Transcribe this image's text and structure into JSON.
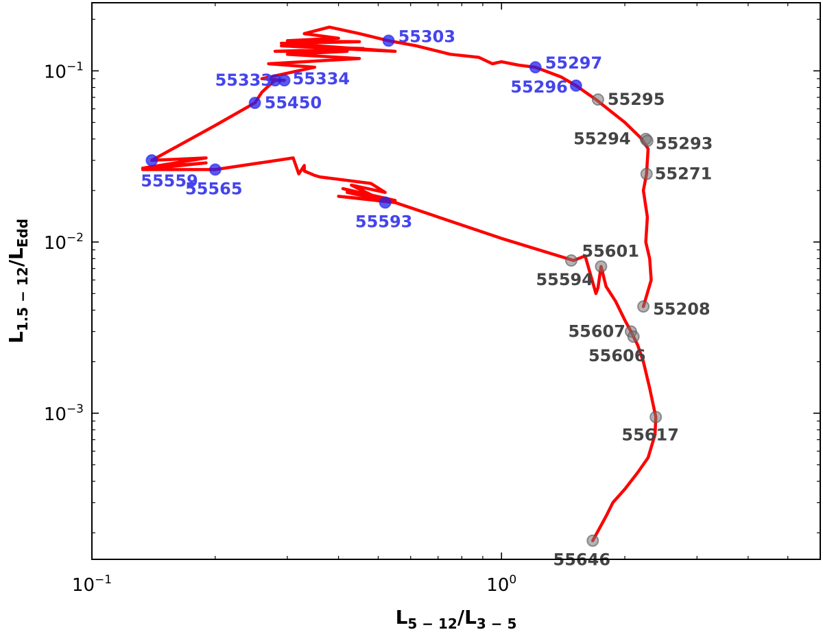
{
  "chart_data": {
    "type": "line",
    "title": "",
    "xlabel": {
      "main": "L",
      "sub1": "5 − 12",
      "slash": "/",
      "main2": "L",
      "sub2": "3 − 5"
    },
    "ylabel": {
      "main": "L",
      "sub1": "1.5 − 12",
      "slash": "/",
      "main2": "L",
      "sub2": "Edd"
    },
    "xscale": "log",
    "yscale": "log",
    "xlim": [
      0.1,
      6.0
    ],
    "ylim": [
      0.00014,
      0.25
    ],
    "grid": false,
    "x_ticks": [
      {
        "value": 0.1,
        "base": "10",
        "exp": "−1"
      },
      {
        "value": 1.0,
        "base": "10",
        "exp": "0"
      }
    ],
    "y_ticks": [
      {
        "value": 0.001,
        "base": "10",
        "exp": "−3"
      },
      {
        "value": 0.01,
        "base": "10",
        "exp": "−2"
      },
      {
        "value": 0.1,
        "base": "10",
        "exp": "−1"
      }
    ],
    "line_color": "#ff0000",
    "track": [
      [
        1.67,
        0.00018
      ],
      [
        1.8,
        0.00025
      ],
      [
        1.87,
        0.0003
      ],
      [
        2.0,
        0.00036
      ],
      [
        2.15,
        0.00045
      ],
      [
        2.28,
        0.00055
      ],
      [
        2.37,
        0.00075
      ],
      [
        2.38,
        0.00095
      ],
      [
        2.3,
        0.0014
      ],
      [
        2.22,
        0.002
      ],
      [
        2.15,
        0.0025
      ],
      [
        2.1,
        0.0028
      ],
      [
        2.07,
        0.003
      ],
      [
        2.0,
        0.0035
      ],
      [
        1.9,
        0.0045
      ],
      [
        1.8,
        0.0055
      ],
      [
        1.75,
        0.0072
      ],
      [
        1.72,
        0.0054
      ],
      [
        1.7,
        0.005
      ],
      [
        1.6,
        0.0083
      ],
      [
        1.5,
        0.0078
      ],
      [
        1.0,
        0.0105
      ],
      [
        0.55,
        0.017
      ],
      [
        0.45,
        0.018
      ],
      [
        0.4,
        0.0185
      ],
      [
        0.55,
        0.017
      ],
      [
        0.42,
        0.0195
      ],
      [
        0.55,
        0.0175
      ],
      [
        0.41,
        0.0205
      ],
      [
        0.5,
        0.018
      ],
      [
        0.43,
        0.0215
      ],
      [
        0.52,
        0.0195
      ],
      [
        0.48,
        0.022
      ],
      [
        0.36,
        0.024
      ],
      [
        0.35,
        0.0245
      ],
      [
        0.33,
        0.026
      ],
      [
        0.33,
        0.028
      ],
      [
        0.32,
        0.025
      ],
      [
        0.31,
        0.031
      ],
      [
        0.2,
        0.0265
      ],
      [
        0.133,
        0.0265
      ],
      [
        0.19,
        0.029
      ],
      [
        0.133,
        0.027
      ],
      [
        0.19,
        0.031
      ],
      [
        0.14,
        0.03
      ],
      [
        0.2,
        0.048
      ],
      [
        0.25,
        0.065
      ],
      [
        0.26,
        0.075
      ],
      [
        0.275,
        0.085
      ],
      [
        0.28,
        0.088
      ],
      [
        0.295,
        0.088
      ],
      [
        0.26,
        0.09
      ],
      [
        0.35,
        0.105
      ],
      [
        0.27,
        0.11
      ],
      [
        0.45,
        0.118
      ],
      [
        0.3,
        0.125
      ],
      [
        0.42,
        0.13
      ],
      [
        0.28,
        0.13
      ],
      [
        0.46,
        0.135
      ],
      [
        0.29,
        0.14
      ],
      [
        0.55,
        0.13
      ],
      [
        0.29,
        0.145
      ],
      [
        0.45,
        0.148
      ],
      [
        0.3,
        0.15
      ],
      [
        0.4,
        0.155
      ],
      [
        0.33,
        0.165
      ],
      [
        0.38,
        0.18
      ],
      [
        0.45,
        0.165
      ],
      [
        0.53,
        0.15
      ],
      [
        0.62,
        0.14
      ],
      [
        0.75,
        0.125
      ],
      [
        0.88,
        0.12
      ],
      [
        0.95,
        0.11
      ],
      [
        1.0,
        0.113
      ],
      [
        1.1,
        0.108
      ],
      [
        1.21,
        0.105
      ],
      [
        1.4,
        0.092
      ],
      [
        1.52,
        0.082
      ],
      [
        1.7,
        0.068
      ],
      [
        2.0,
        0.05
      ],
      [
        2.2,
        0.04
      ],
      [
        2.28,
        0.035
      ],
      [
        2.26,
        0.025
      ],
      [
        2.22,
        0.02
      ],
      [
        2.27,
        0.014
      ],
      [
        2.25,
        0.01
      ],
      [
        2.3,
        0.008
      ],
      [
        2.32,
        0.006
      ],
      [
        2.22,
        0.0042
      ]
    ],
    "points": [
      {
        "label": "55303",
        "x": 0.53,
        "y": 0.15,
        "group": "blue"
      },
      {
        "label": "55297",
        "x": 1.21,
        "y": 0.105,
        "group": "blue"
      },
      {
        "label": "55296",
        "x": 1.52,
        "y": 0.082,
        "group": "blue"
      },
      {
        "label": "55333",
        "x": 0.28,
        "y": 0.088,
        "group": "blue"
      },
      {
        "label": "55334",
        "x": 0.295,
        "y": 0.088,
        "group": "blue"
      },
      {
        "label": "55450",
        "x": 0.25,
        "y": 0.065,
        "group": "blue"
      },
      {
        "label": "55559",
        "x": 0.14,
        "y": 0.03,
        "group": "blue"
      },
      {
        "label": "55565",
        "x": 0.2,
        "y": 0.0265,
        "group": "blue"
      },
      {
        "label": "55593",
        "x": 0.52,
        "y": 0.017,
        "group": "blue"
      },
      {
        "label": "55295",
        "x": 1.72,
        "y": 0.068,
        "group": "gray"
      },
      {
        "label": "55294",
        "x": 2.25,
        "y": 0.04,
        "group": "gray"
      },
      {
        "label": "55293",
        "x": 2.27,
        "y": 0.039,
        "group": "gray"
      },
      {
        "label": "55271",
        "x": 2.26,
        "y": 0.025,
        "group": "gray"
      },
      {
        "label": "55601",
        "x": 1.75,
        "y": 0.0072,
        "group": "gray"
      },
      {
        "label": "55594",
        "x": 1.48,
        "y": 0.0078,
        "group": "gray"
      },
      {
        "label": "55208",
        "x": 2.22,
        "y": 0.0042,
        "group": "gray"
      },
      {
        "label": "55607",
        "x": 2.07,
        "y": 0.003,
        "group": "gray"
      },
      {
        "label": "55606",
        "x": 2.1,
        "y": 0.0028,
        "group": "gray"
      },
      {
        "label": "55617",
        "x": 2.38,
        "y": 0.00095,
        "group": "gray"
      },
      {
        "label": "55646",
        "x": 1.67,
        "y": 0.00018,
        "group": "gray"
      }
    ],
    "colors": {
      "blue_marker": "#2222ee",
      "blue_label": "#4444ee",
      "gray_marker": "#777777",
      "gray_label": "#444444"
    }
  }
}
